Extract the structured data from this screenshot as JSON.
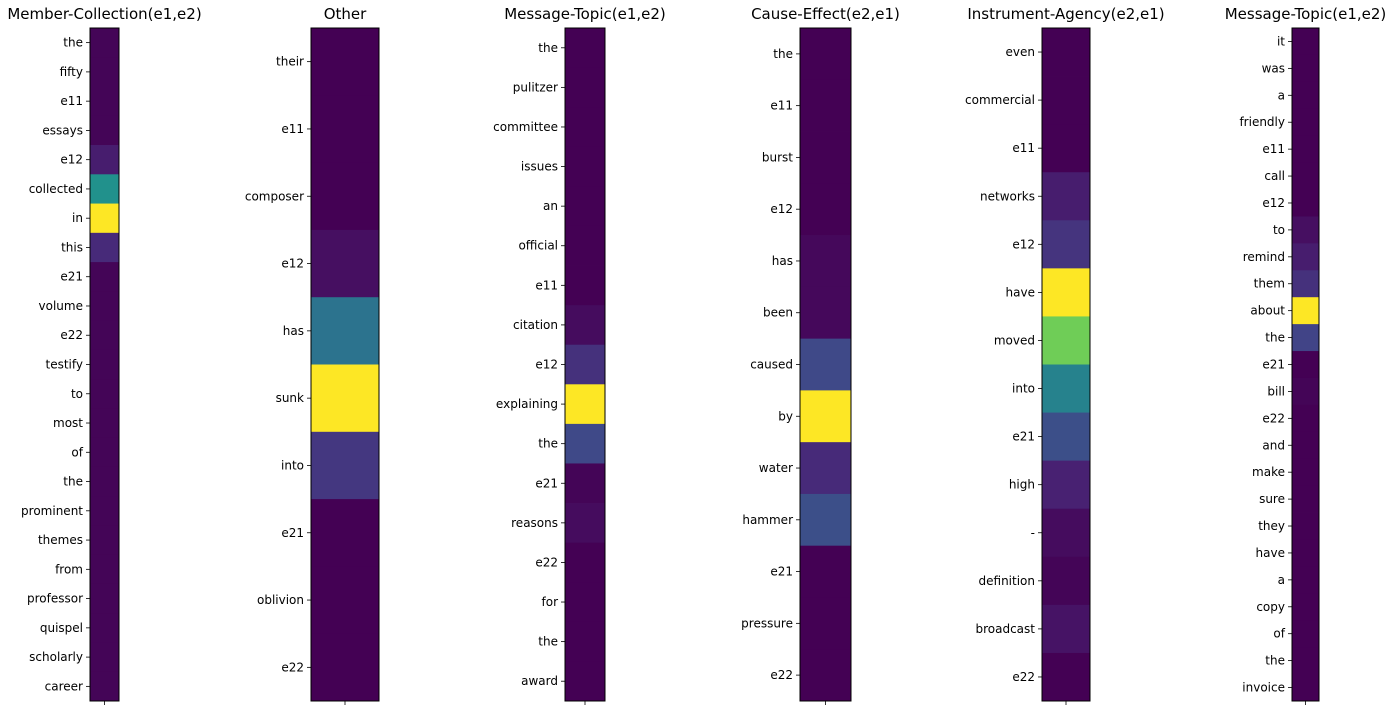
{
  "colormap": "viridis",
  "colors": {
    "low": "#440154",
    "high": "#fde725",
    "frame": "#000000",
    "background": "#ffffff"
  },
  "chart_data": [
    {
      "type": "heatmap",
      "title": "Member-Collection(e1,e2)",
      "tokens": [
        "the",
        "fifty",
        "e11",
        "essays",
        "e12",
        "collected",
        "in",
        "this",
        "e21",
        "volume",
        "e22",
        "testify",
        "to",
        "most",
        "of",
        "the",
        "prominent",
        "themes",
        "from",
        "professor",
        "quispel",
        "scholarly",
        "career"
      ],
      "values": [
        0.01,
        0.01,
        0.01,
        0.01,
        0.08,
        0.5,
        1.0,
        0.12,
        0.01,
        0.01,
        0.01,
        0.01,
        0.01,
        0.01,
        0.01,
        0.01,
        0.01,
        0.01,
        0.01,
        0.01,
        0.01,
        0.01,
        0.01
      ]
    },
    {
      "type": "heatmap",
      "title": "Other",
      "tokens": [
        "their",
        "e11",
        "composer",
        "e12",
        "has",
        "sunk",
        "into",
        "e21",
        "oblivion",
        "e22"
      ],
      "values": [
        0.0,
        0.0,
        0.0,
        0.04,
        0.38,
        1.0,
        0.16,
        0.0,
        0.0,
        0.0
      ]
    },
    {
      "type": "heatmap",
      "title": "Message-Topic(e1,e2)",
      "tokens": [
        "the",
        "pulitzer",
        "committee",
        "issues",
        "an",
        "official",
        "e11",
        "citation",
        "e12",
        "explaining",
        "the",
        "e21",
        "reasons",
        "e22",
        "for",
        "the",
        "award"
      ],
      "values": [
        0.0,
        0.0,
        0.0,
        0.0,
        0.0,
        0.0,
        0.0,
        0.03,
        0.14,
        1.0,
        0.22,
        0.01,
        0.03,
        0.0,
        0.0,
        0.0,
        0.0
      ]
    },
    {
      "type": "heatmap",
      "title": "Cause-Effect(e2,e1)",
      "tokens": [
        "the",
        "e11",
        "burst",
        "e12",
        "has",
        "been",
        "caused",
        "by",
        "water",
        "hammer",
        "e21",
        "pressure",
        "e22"
      ],
      "values": [
        0.0,
        0.0,
        0.0,
        0.0,
        0.02,
        0.02,
        0.22,
        1.0,
        0.12,
        0.24,
        0.0,
        0.0,
        0.0
      ]
    },
    {
      "type": "heatmap",
      "title": "Instrument-Agency(e2,e1)",
      "tokens": [
        "even",
        "commercial",
        "e11",
        "networks",
        "e12",
        "have",
        "moved",
        "into",
        "e21",
        "high",
        "-",
        "definition",
        "broadcast",
        "e22"
      ],
      "values": [
        0.0,
        0.0,
        0.0,
        0.08,
        0.15,
        1.0,
        0.78,
        0.44,
        0.24,
        0.09,
        0.03,
        0.01,
        0.05,
        0.0
      ]
    },
    {
      "type": "heatmap",
      "title": "Message-Topic(e1,e2)",
      "tokens": [
        "it",
        "was",
        "a",
        "friendly",
        "e11",
        "call",
        "e12",
        "to",
        "remind",
        "them",
        "about",
        "the",
        "e21",
        "bill",
        "e22",
        "and",
        "make",
        "sure",
        "they",
        "have",
        "a",
        "copy",
        "of",
        "the",
        "invoice"
      ],
      "values": [
        0.0,
        0.0,
        0.0,
        0.0,
        0.0,
        0.0,
        0.0,
        0.04,
        0.08,
        0.14,
        1.0,
        0.2,
        0.0,
        0.01,
        0.0,
        0.0,
        0.0,
        0.0,
        0.0,
        0.0,
        0.0,
        0.0,
        0.0,
        0.0,
        0.0
      ]
    }
  ]
}
